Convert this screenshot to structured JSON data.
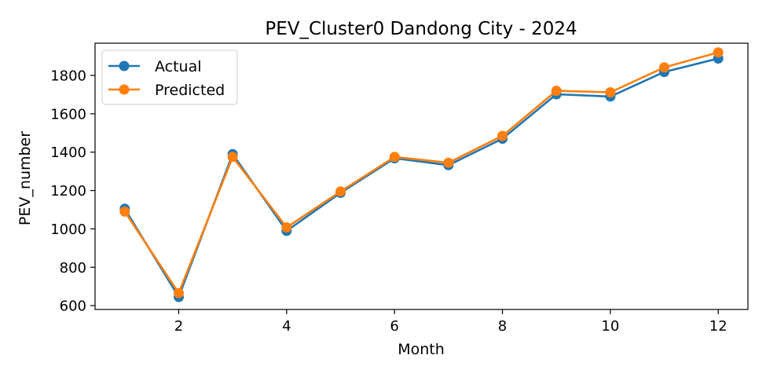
{
  "chart_data": {
    "type": "line",
    "title": "PEV_Cluster0 Dandong City - 2024",
    "xlabel": "Month",
    "ylabel": "PEV_number",
    "x": [
      1,
      2,
      3,
      4,
      5,
      6,
      7,
      8,
      9,
      10,
      11,
      12
    ],
    "xlim": [
      0.45,
      12.55
    ],
    "ylim": [
      580,
      1968
    ],
    "xticks": [
      2,
      4,
      6,
      8,
      10,
      12
    ],
    "yticks": [
      600,
      800,
      1000,
      1200,
      1400,
      1600,
      1800
    ],
    "grid": false,
    "legend_position": "upper left",
    "series": [
      {
        "name": "Actual",
        "color": "#1f77b4",
        "marker": "circle",
        "values": [
          1105,
          645,
          1390,
          990,
          1188,
          1368,
          1332,
          1470,
          1702,
          1690,
          1818,
          1888
        ]
      },
      {
        "name": "Predicted",
        "color": "#ff7f0e",
        "marker": "circle",
        "values": [
          1090,
          665,
          1375,
          1008,
          1195,
          1375,
          1345,
          1485,
          1720,
          1712,
          1842,
          1920
        ]
      }
    ]
  }
}
